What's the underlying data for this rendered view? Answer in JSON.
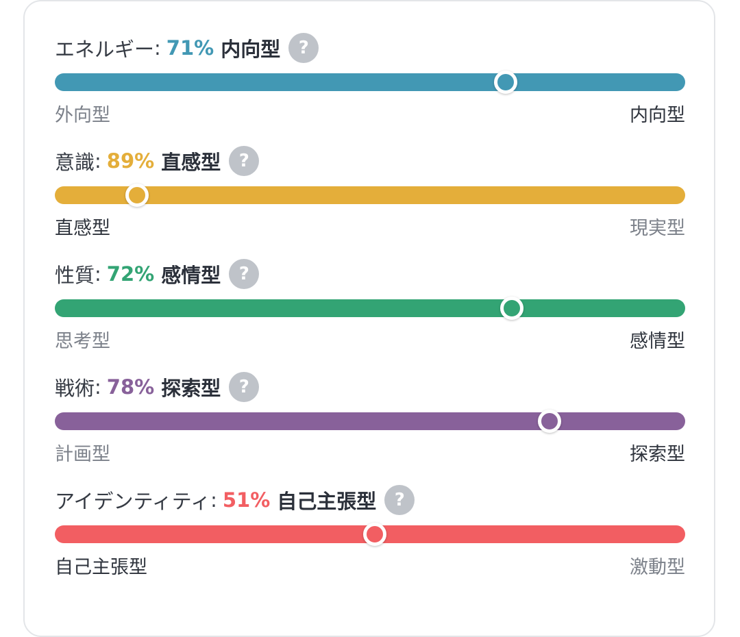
{
  "traits": [
    {
      "name": "エネルギー",
      "percent": "71%",
      "type": "内向型",
      "left_label": "外向型",
      "right_label": "内向型",
      "active_side": "right",
      "knob_position": 0.715,
      "color": "#4298b4"
    },
    {
      "name": "意識",
      "percent": "89%",
      "type": "直感型",
      "left_label": "直感型",
      "right_label": "現実型",
      "active_side": "left",
      "knob_position": 0.13,
      "color": "#e4ae3a"
    },
    {
      "name": "性質",
      "percent": "72%",
      "type": "感情型",
      "left_label": "思考型",
      "right_label": "感情型",
      "active_side": "right",
      "knob_position": 0.725,
      "color": "#33a474"
    },
    {
      "name": "戦術",
      "percent": "78%",
      "type": "探索型",
      "left_label": "計画型",
      "right_label": "探索型",
      "active_side": "right",
      "knob_position": 0.785,
      "color": "#88619a"
    },
    {
      "name": "アイデンティティ",
      "percent": "51%",
      "type": "自己主張型",
      "left_label": "自己主張型",
      "right_label": "激動型",
      "active_side": "left",
      "knob_position": 0.508,
      "color": "#f25e62"
    }
  ],
  "help_icon": "question-mark-icon",
  "help_glyph": "?",
  "colon": ":"
}
